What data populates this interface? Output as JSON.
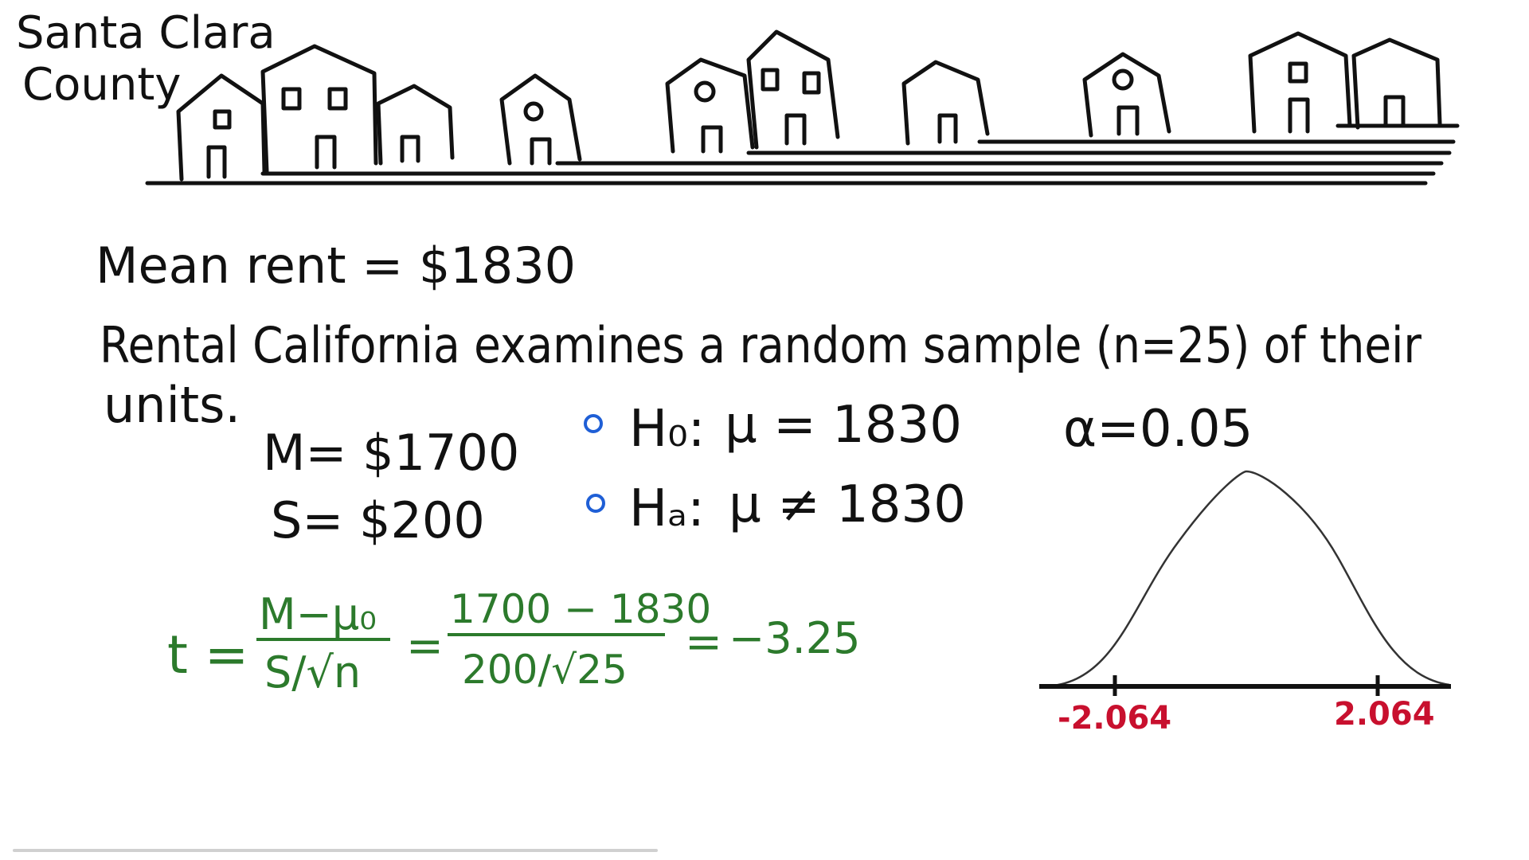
{
  "header": {
    "county_line1": "Santa Clara",
    "county_line2": "County"
  },
  "problem": {
    "mean_rent": "Mean rent = $1830",
    "description_line1": "Rental California examines a random sample (n=25) of their",
    "description_line2": "units."
  },
  "sample_stats": {
    "M": "M= $1700",
    "S": "S= $200"
  },
  "hypotheses": {
    "h0_label": "H₀:",
    "h0_expr": "μ = 1830",
    "ha_label": "Hₐ:",
    "ha_expr": "μ ≠ 1830"
  },
  "alpha": "α=0.05",
  "formula": {
    "t_label": "t =",
    "numerator": "M−μ₀",
    "denominator": "S/√n",
    "eq1": "=",
    "num_values": "1700 − 1830",
    "den_values": "200/√25",
    "eq2": "=",
    "result": "−3.25"
  },
  "distribution": {
    "critical_left": "-2.064",
    "critical_right": "2.064"
  },
  "colors": {
    "ink": "#111111",
    "formula_green": "#2c7a2c",
    "critical_red": "#c8102e",
    "bullet_blue": "#1f5fd6"
  }
}
